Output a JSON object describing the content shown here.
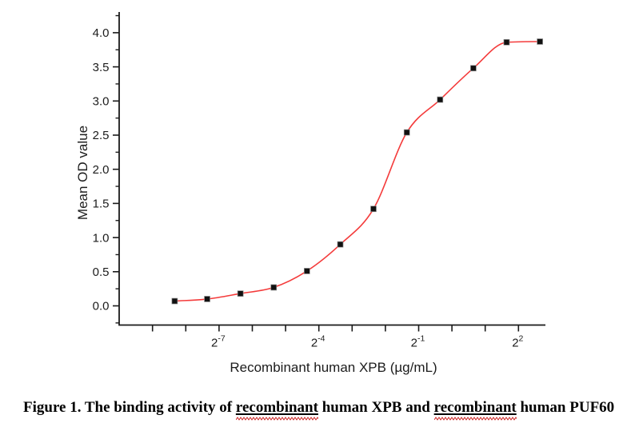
{
  "chart_data": {
    "type": "scatter",
    "title": "",
    "xlabel": "Recombinant human XPB (µg/mL)",
    "ylabel": "Mean OD value",
    "x_scale": "log2",
    "x_unit": "µg/mL",
    "series": [
      {
        "name": "Mean OD value",
        "marker": "filled-square",
        "marker_color": "#111111",
        "x": [
          0.0031,
          0.0061,
          0.0122,
          0.0244,
          0.0488,
          0.0977,
          0.195,
          0.391,
          0.781,
          1.563,
          3.125,
          6.25
        ],
        "y": [
          0.07,
          0.1,
          0.18,
          0.27,
          0.51,
          0.9,
          1.42,
          2.54,
          3.02,
          3.48,
          3.86,
          3.87
        ]
      }
    ],
    "fit_curve": {
      "type": "sigmoidal-dose-response",
      "color": "#f43b3b"
    },
    "x_major_tick_exponents": [
      -7,
      -4,
      -1,
      2
    ],
    "x_minor_tick_exponents": [
      -9,
      -8,
      -7,
      -6,
      -5,
      -4,
      -3,
      -2,
      -1,
      0,
      1,
      2
    ],
    "x_tick_base": "2",
    "y_ticks": [
      0.0,
      0.5,
      1.0,
      1.5,
      2.0,
      2.5,
      3.0,
      3.5,
      4.0
    ],
    "y_minor_step": 0.25,
    "xlim_log2": [
      -10,
      2.85
    ],
    "ylim": [
      -0.28,
      4.3
    ],
    "grid": false,
    "legend": false,
    "axis_color": "#1a1a1a"
  },
  "caption": {
    "parts": [
      {
        "text": "Figure 1. The binding activity of ",
        "misspelled": false
      },
      {
        "text": "recombinant",
        "misspelled": true
      },
      {
        "text": " human XPB and ",
        "misspelled": false
      },
      {
        "text": "recombinant",
        "misspelled": true
      },
      {
        "text": " human PUF60",
        "misspelled": false
      }
    ],
    "squiggle_color": "#cc2222"
  }
}
